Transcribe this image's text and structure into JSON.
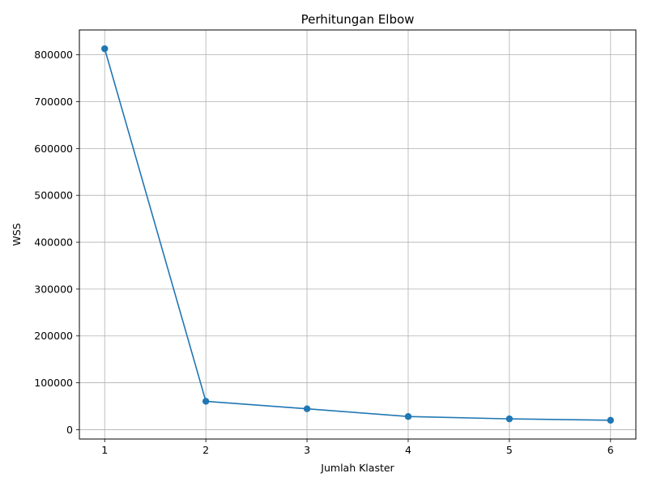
{
  "chart_data": {
    "type": "line",
    "title": "Perhitungan Elbow",
    "xlabel": "Jumlah Klaster",
    "ylabel": "WSS",
    "x": [
      1,
      2,
      3,
      4,
      5,
      6
    ],
    "series": [
      {
        "values": [
          813000,
          60500,
          44500,
          28000,
          23000,
          20000
        ],
        "color": "#1f77b4",
        "marker": "circle"
      }
    ],
    "xticks": [
      "1",
      "2",
      "3",
      "4",
      "5",
      "6"
    ],
    "yticks": [
      "0",
      "100000",
      "200000",
      "300000",
      "400000",
      "500000",
      "600000",
      "700000",
      "800000"
    ],
    "xlim": [
      0.75,
      6.25
    ],
    "ylim": [
      -20000,
      853000
    ],
    "grid": true,
    "legend": "none"
  }
}
